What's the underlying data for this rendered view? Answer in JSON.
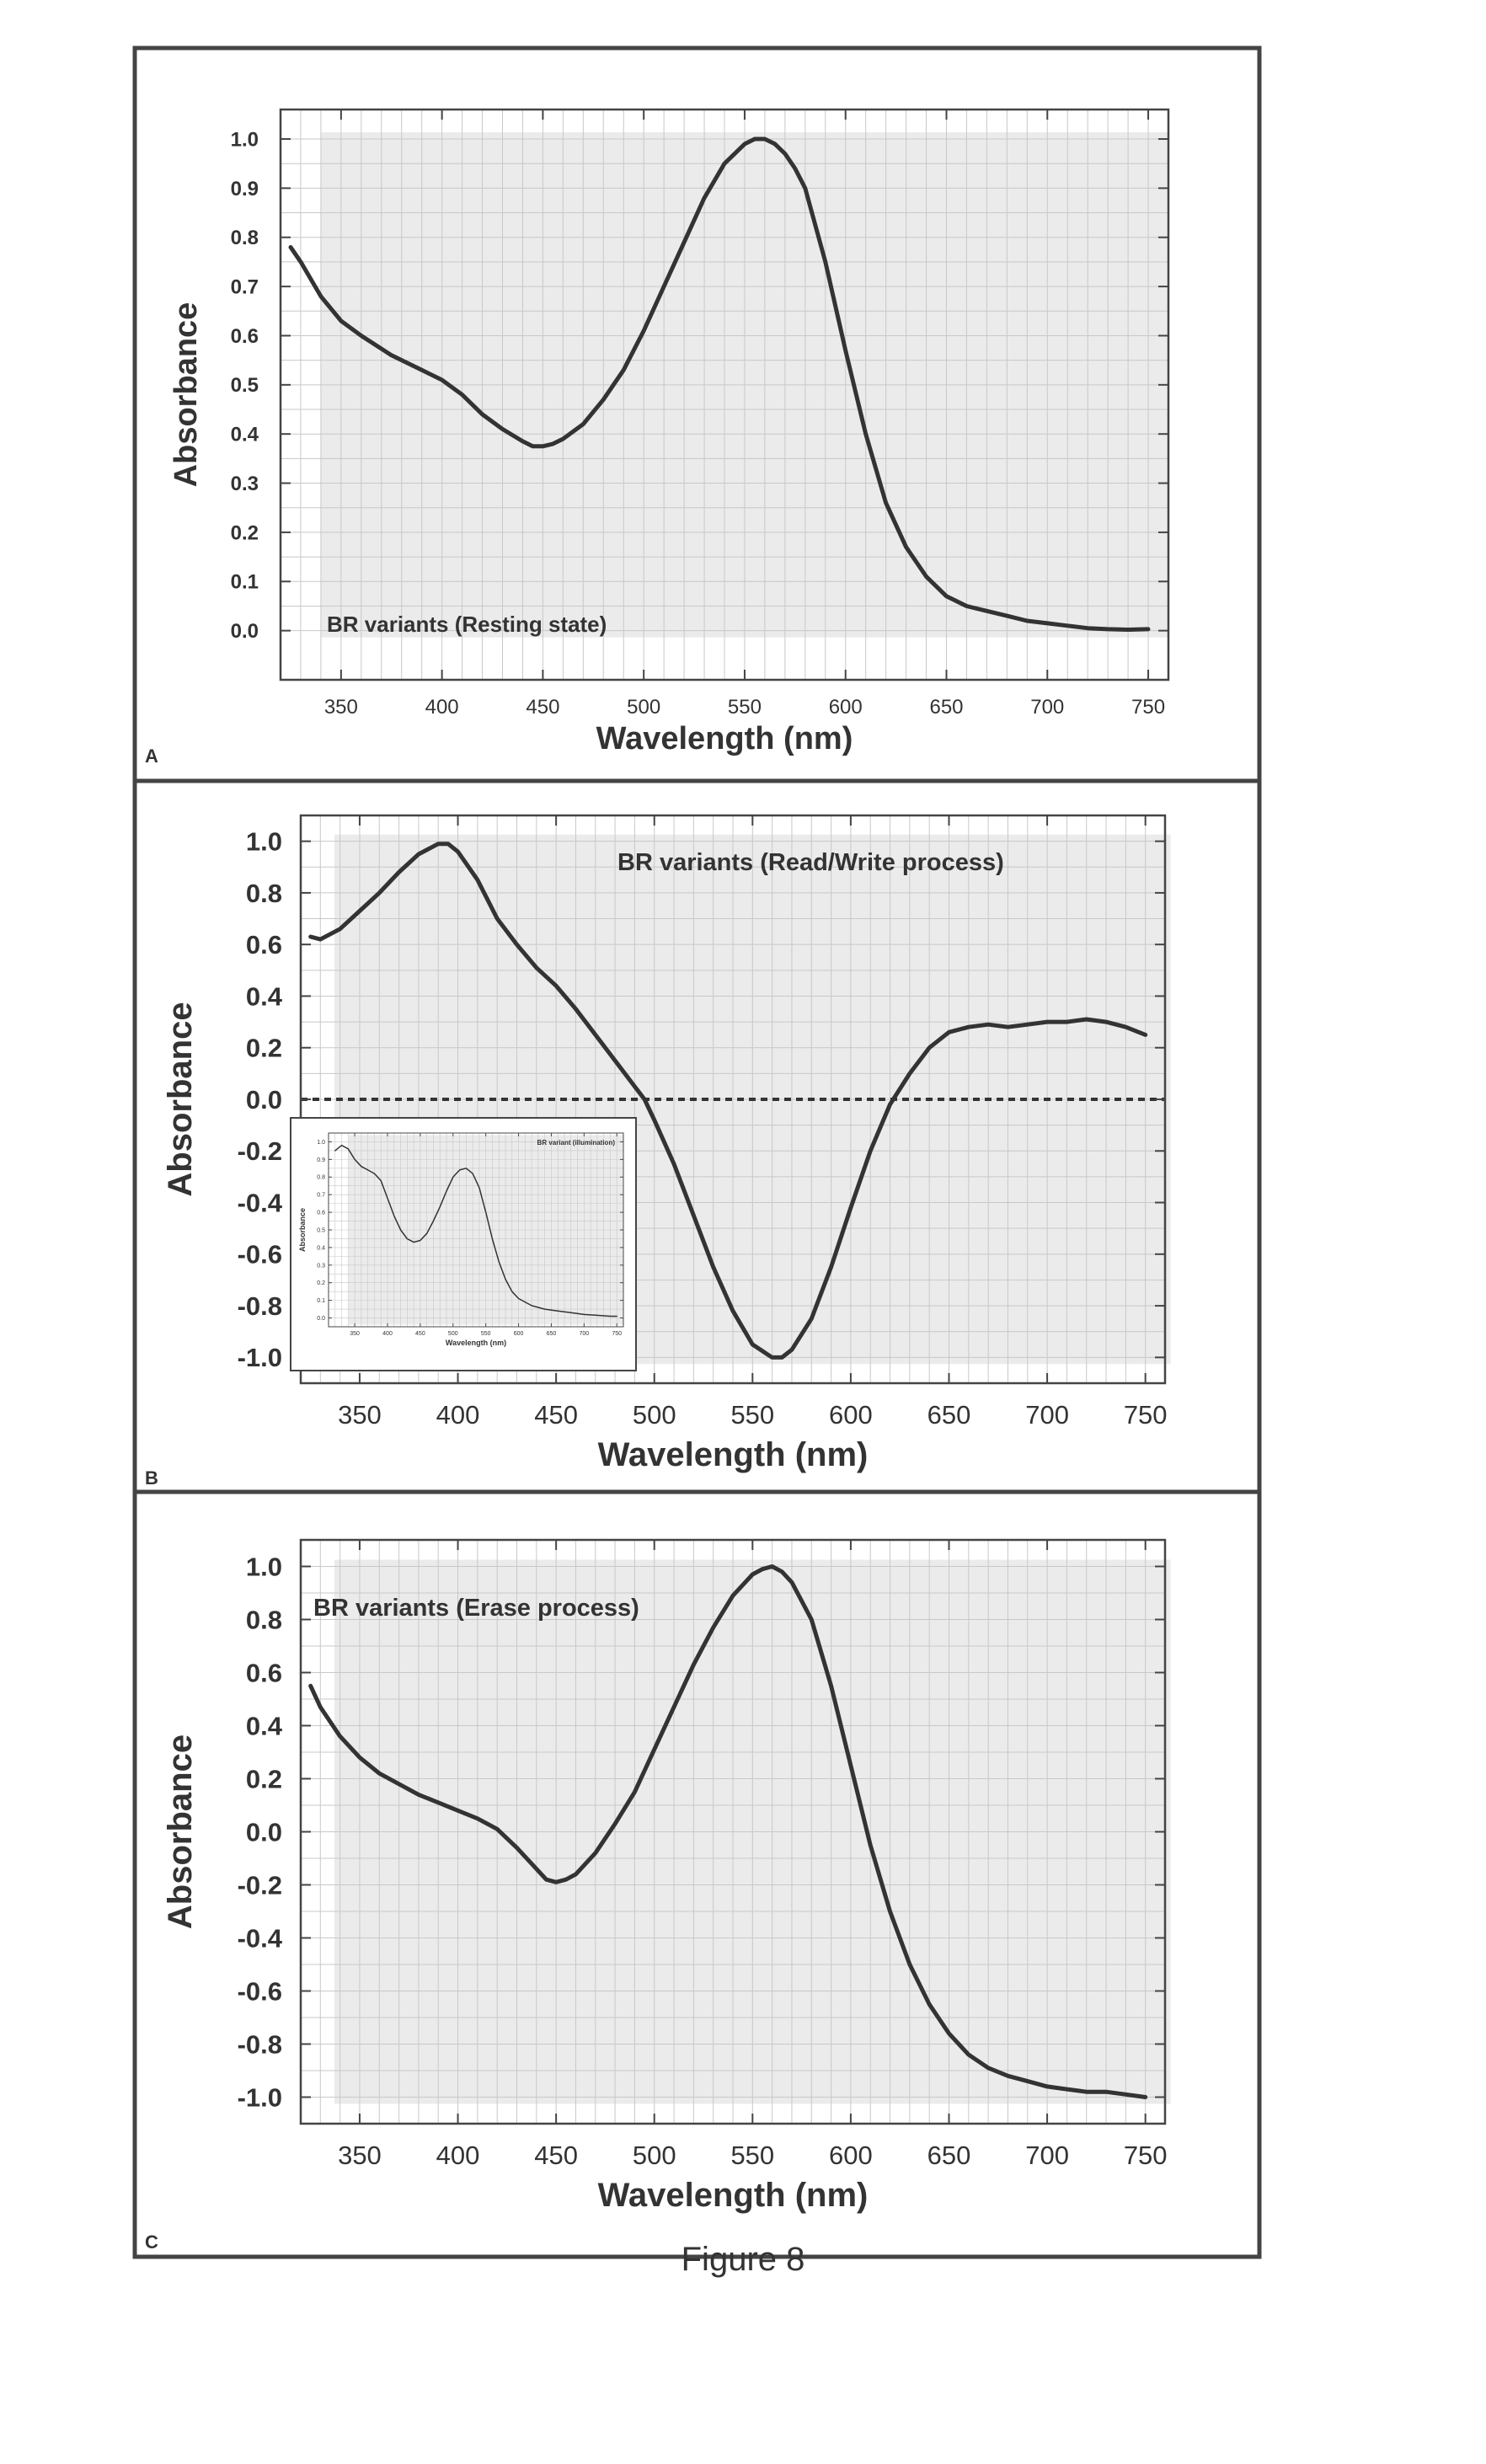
{
  "figure_label": "Figure 8",
  "chart_data": [
    {
      "panel": "A",
      "type": "line",
      "annotation": "BR variants (Resting state)",
      "xlabel": "Wavelength (nm)",
      "ylabel": "Absorbance",
      "xlim": [
        320,
        760
      ],
      "ylim": [
        -0.1,
        1.06
      ],
      "xticks": [
        350,
        400,
        450,
        500,
        550,
        600,
        650,
        700,
        750
      ],
      "yticks": [
        0.0,
        0.1,
        0.2,
        0.3,
        0.4,
        0.5,
        0.6,
        0.7,
        0.8,
        0.9,
        1.0
      ],
      "ytick_decimals": 1,
      "grid": true,
      "series": [
        {
          "x": [
            325,
            330,
            340,
            350,
            360,
            375,
            390,
            400,
            410,
            420,
            430,
            440,
            445,
            450,
            455,
            460,
            470,
            480,
            490,
            500,
            510,
            520,
            530,
            540,
            550,
            555,
            560,
            565,
            570,
            575,
            580,
            590,
            600,
            610,
            620,
            630,
            640,
            650,
            660,
            670,
            680,
            690,
            700,
            710,
            720,
            730,
            740,
            750
          ],
          "y": [
            0.78,
            0.75,
            0.68,
            0.63,
            0.6,
            0.56,
            0.53,
            0.51,
            0.48,
            0.44,
            0.41,
            0.385,
            0.375,
            0.375,
            0.38,
            0.39,
            0.42,
            0.47,
            0.53,
            0.61,
            0.7,
            0.79,
            0.88,
            0.95,
            0.99,
            1.0,
            1.0,
            0.99,
            0.97,
            0.94,
            0.9,
            0.75,
            0.57,
            0.4,
            0.26,
            0.17,
            0.11,
            0.07,
            0.05,
            0.04,
            0.03,
            0.02,
            0.015,
            0.01,
            0.005,
            0.003,
            0.002,
            0.003
          ]
        }
      ]
    },
    {
      "panel": "B",
      "type": "line",
      "annotation": "BR variants (Read/Write process)",
      "xlabel": "Wavelength (nm)",
      "ylabel": "Absorbance",
      "xlim": [
        320,
        760
      ],
      "ylim": [
        -1.1,
        1.1
      ],
      "xticks": [
        350,
        400,
        450,
        500,
        550,
        600,
        650,
        700,
        750
      ],
      "yticks": [
        -1.0,
        -0.8,
        -0.6,
        -0.4,
        -0.2,
        0.0,
        0.2,
        0.4,
        0.6,
        0.8,
        1.0
      ],
      "ytick_decimals": 1,
      "grid": true,
      "zero_line": true,
      "series": [
        {
          "x": [
            325,
            330,
            340,
            350,
            360,
            370,
            380,
            390,
            395,
            400,
            410,
            420,
            430,
            440,
            450,
            460,
            470,
            480,
            490,
            495,
            500,
            510,
            520,
            530,
            540,
            550,
            560,
            565,
            570,
            580,
            590,
            600,
            610,
            620,
            630,
            640,
            650,
            660,
            670,
            680,
            690,
            700,
            710,
            720,
            730,
            740,
            750
          ],
          "y": [
            0.63,
            0.62,
            0.66,
            0.73,
            0.8,
            0.88,
            0.95,
            0.99,
            0.99,
            0.96,
            0.85,
            0.7,
            0.6,
            0.51,
            0.44,
            0.35,
            0.25,
            0.15,
            0.05,
            0.0,
            -0.08,
            -0.25,
            -0.45,
            -0.65,
            -0.82,
            -0.95,
            -1.0,
            -1.0,
            -0.97,
            -0.85,
            -0.65,
            -0.42,
            -0.2,
            -0.02,
            0.1,
            0.2,
            0.26,
            0.28,
            0.29,
            0.28,
            0.29,
            0.3,
            0.3,
            0.31,
            0.3,
            0.28,
            0.25
          ]
        }
      ],
      "inset": {
        "type": "line",
        "annotation": "BR variant (illumination)",
        "xlabel": "Wavelength (nm)",
        "ylabel": "Absorbance",
        "xlim": [
          310,
          760
        ],
        "ylim": [
          -0.05,
          1.05
        ],
        "xticks": [
          350,
          400,
          450,
          500,
          550,
          600,
          650,
          700,
          750
        ],
        "yticks": [
          0.0,
          0.1,
          0.2,
          0.3,
          0.4,
          0.5,
          0.6,
          0.7,
          0.8,
          0.9,
          1.0
        ],
        "ytick_decimals": 1,
        "grid": true,
        "series": [
          {
            "x": [
              320,
              330,
              340,
              350,
              360,
              370,
              380,
              390,
              400,
              410,
              420,
              430,
              440,
              450,
              460,
              470,
              480,
              490,
              500,
              510,
              520,
              530,
              540,
              550,
              560,
              570,
              580,
              590,
              600,
              620,
              640,
              660,
              680,
              700,
              720,
              740,
              750
            ],
            "y": [
              0.95,
              0.98,
              0.96,
              0.9,
              0.86,
              0.84,
              0.82,
              0.78,
              0.68,
              0.58,
              0.5,
              0.45,
              0.43,
              0.44,
              0.48,
              0.55,
              0.63,
              0.72,
              0.8,
              0.84,
              0.85,
              0.82,
              0.74,
              0.6,
              0.45,
              0.32,
              0.22,
              0.15,
              0.11,
              0.07,
              0.05,
              0.04,
              0.03,
              0.02,
              0.015,
              0.01,
              0.01
            ]
          }
        ]
      }
    },
    {
      "panel": "C",
      "type": "line",
      "annotation": "BR variants (Erase process)",
      "xlabel": "Wavelength (nm)",
      "ylabel": "Absorbance",
      "xlim": [
        320,
        760
      ],
      "ylim": [
        -1.1,
        1.1
      ],
      "xticks": [
        350,
        400,
        450,
        500,
        550,
        600,
        650,
        700,
        750
      ],
      "yticks": [
        -1.0,
        -0.8,
        -0.6,
        -0.4,
        -0.2,
        0.0,
        0.2,
        0.4,
        0.6,
        0.8,
        1.0
      ],
      "ytick_decimals": 1,
      "grid": true,
      "series": [
        {
          "x": [
            325,
            330,
            340,
            350,
            360,
            370,
            380,
            390,
            400,
            410,
            420,
            430,
            440,
            445,
            450,
            455,
            460,
            470,
            480,
            490,
            500,
            510,
            520,
            530,
            540,
            550,
            555,
            560,
            565,
            570,
            580,
            590,
            600,
            610,
            620,
            630,
            640,
            650,
            660,
            670,
            680,
            690,
            700,
            710,
            720,
            730,
            740,
            750
          ],
          "y": [
            0.55,
            0.47,
            0.36,
            0.28,
            0.22,
            0.18,
            0.14,
            0.11,
            0.08,
            0.05,
            0.01,
            -0.06,
            -0.14,
            -0.18,
            -0.19,
            -0.18,
            -0.16,
            -0.08,
            0.03,
            0.15,
            0.31,
            0.47,
            0.63,
            0.77,
            0.89,
            0.97,
            0.99,
            1.0,
            0.98,
            0.94,
            0.8,
            0.55,
            0.25,
            -0.05,
            -0.3,
            -0.5,
            -0.65,
            -0.76,
            -0.84,
            -0.89,
            -0.92,
            -0.94,
            -0.96,
            -0.97,
            -0.98,
            -0.98,
            -0.99,
            -1.0
          ]
        }
      ]
    }
  ]
}
